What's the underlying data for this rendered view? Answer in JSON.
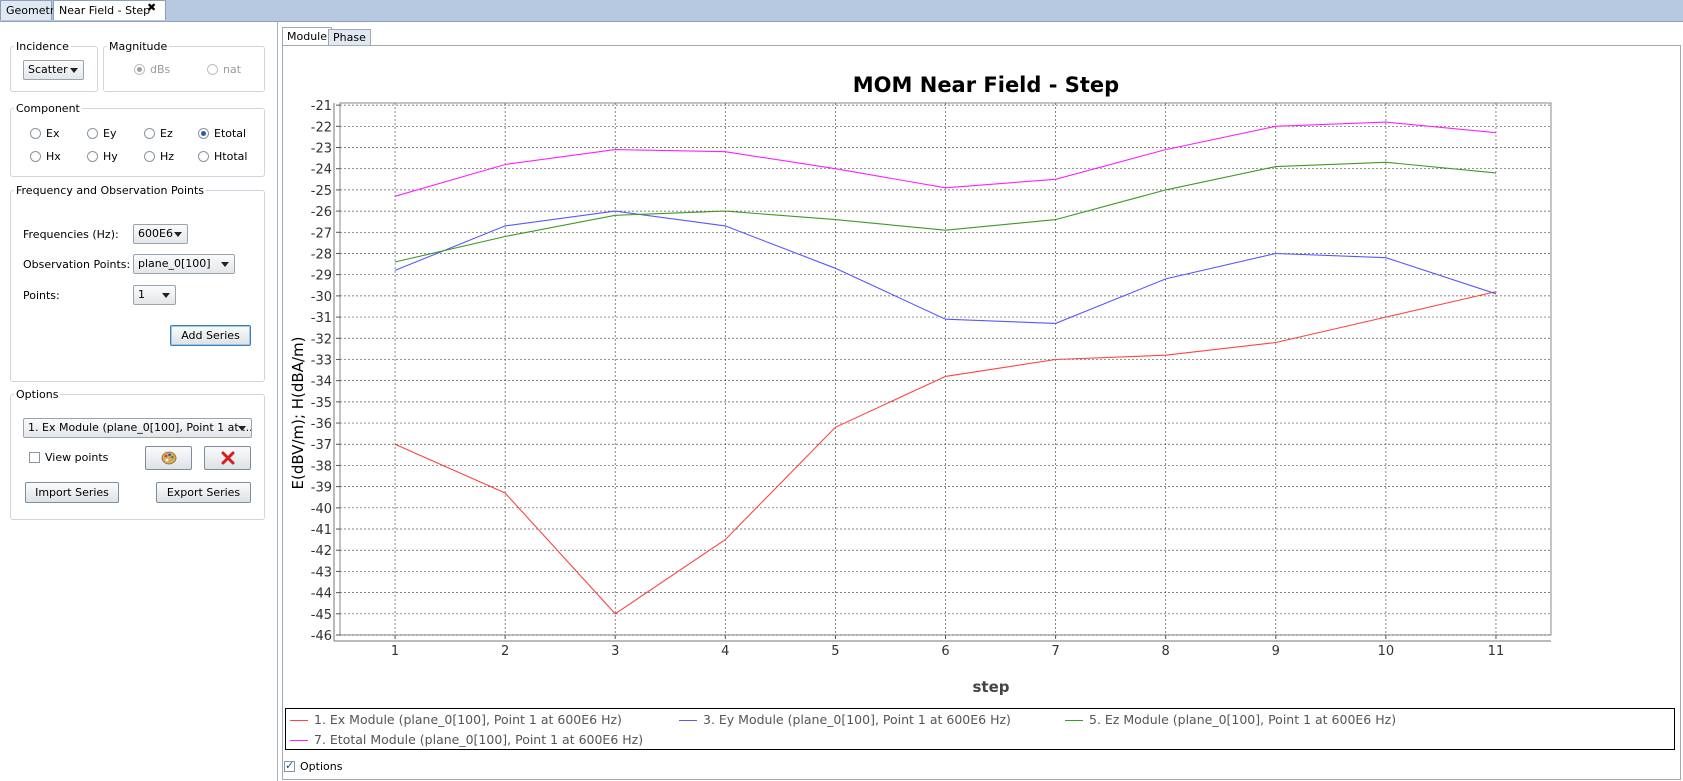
{
  "top_tabs": {
    "geometry": "Geometry",
    "near_field": "Near Field - Step",
    "close": "✖"
  },
  "left": {
    "incidence": {
      "title": "Incidence",
      "value": "Scatter"
    },
    "magnitude": {
      "title": "Magnitude",
      "options": [
        "dBs",
        "nat"
      ],
      "selected": "dBs"
    },
    "component": {
      "title": "Component",
      "row1": [
        "Ex",
        "Ey",
        "Ez",
        "Etotal"
      ],
      "row2": [
        "Hx",
        "Hy",
        "Hz",
        "Htotal"
      ],
      "selected": "Etotal"
    },
    "freq_obs": {
      "title": "Frequency and Observation Points",
      "freq_label": "Frequencies (Hz):",
      "freq_value": "600E6",
      "obs_label": "Observation Points:",
      "obs_value": "plane_0[100]",
      "points_label": "Points:",
      "points_value": "1",
      "add_series": "Add Series"
    },
    "options": {
      "title": "Options",
      "series_select": "1. Ex Module (plane_0[100], Point 1 at ...",
      "view_points": "View points",
      "import": "Import Series",
      "export": "Export Series",
      "palette_icon": "palette-icon",
      "delete_icon": "delete-icon"
    }
  },
  "right": {
    "tabs": [
      "Module",
      "Phase"
    ],
    "options_checkbox": "Options"
  },
  "chart_data": {
    "type": "line",
    "title": "MOM Near Field - Step",
    "xlabel": "step",
    "ylabel": "E(dBV/m); H(dBA/m)",
    "x": [
      1,
      2,
      3,
      4,
      5,
      6,
      7,
      8,
      9,
      10,
      11
    ],
    "xlim": [
      0.5,
      11.5
    ],
    "ylim": [
      -46,
      -20.9
    ],
    "yticks": [
      -21,
      -22,
      -23,
      -24,
      -25,
      -26,
      -27,
      -28,
      -29,
      -30,
      -31,
      -32,
      -33,
      -34,
      -35,
      -36,
      -37,
      -38,
      -39,
      -40,
      -41,
      -42,
      -43,
      -44,
      -45,
      -46
    ],
    "grid": true,
    "legend_position": "bottom",
    "series": [
      {
        "name": "1. Ex Module (plane_0[100], Point 1 at 600E6 Hz)",
        "color": "#ff4444",
        "values": [
          -37.0,
          -39.3,
          -45.0,
          -41.5,
          -36.2,
          -33.8,
          -33.0,
          -32.8,
          -32.2,
          -31.0,
          -29.8
        ]
      },
      {
        "name": "3. Ey Module (plane_0[100], Point 1 at 600E6 Hz)",
        "color": "#5858ff",
        "values": [
          -28.8,
          -26.7,
          -26.0,
          -26.7,
          -28.7,
          -31.1,
          -31.3,
          -29.2,
          -28.0,
          -28.2,
          -29.9
        ]
      },
      {
        "name": "5. Ez Module (plane_0[100], Point 1 at 600E6 Hz)",
        "color": "#3c9b22",
        "values": [
          -28.4,
          -27.2,
          -26.2,
          -26.0,
          -26.4,
          -26.9,
          -26.4,
          -25.0,
          -23.9,
          -23.7,
          -24.2
        ]
      },
      {
        "name": "7. Etotal Module (plane_0[100], Point 1 at 600E6 Hz)",
        "color": "#ff20ff",
        "values": [
          -25.3,
          -23.8,
          -23.1,
          -23.2,
          -24.0,
          -24.9,
          -24.5,
          -23.1,
          -22.0,
          -21.8,
          -22.3
        ]
      }
    ]
  }
}
